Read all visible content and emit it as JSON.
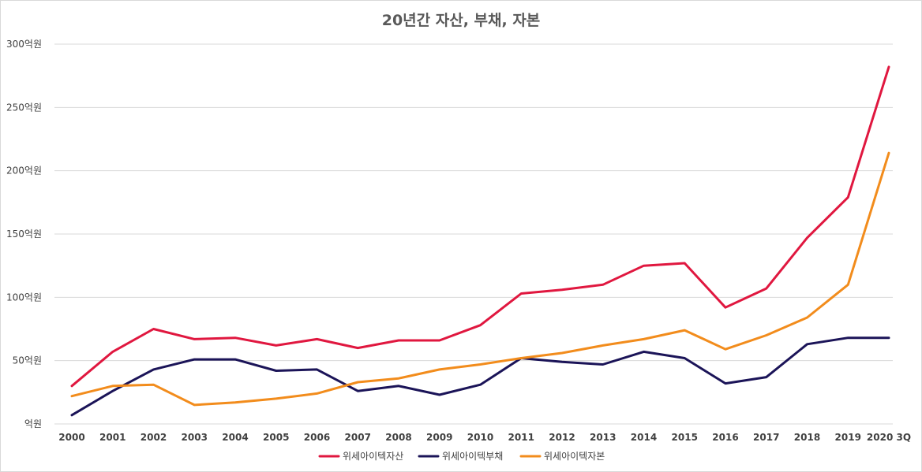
{
  "chart_data": {
    "type": "line",
    "title": "20년간 자산, 부채, 자본",
    "xlabel": "",
    "ylabel": "",
    "categories": [
      "2000",
      "2001",
      "2002",
      "2003",
      "2004",
      "2005",
      "2006",
      "2007",
      "2008",
      "2009",
      "2010",
      "2011",
      "2012",
      "2013",
      "2014",
      "2015",
      "2016",
      "2017",
      "2018",
      "2019",
      "2020 3Q"
    ],
    "ylim": [
      0,
      300
    ],
    "yticks": [
      0,
      50,
      100,
      150,
      200,
      250,
      300
    ],
    "ytick_labels": [
      "억원",
      "50억원",
      "100억원",
      "150억원",
      "200억원",
      "250억원",
      "300억원"
    ],
    "grid": true,
    "legend_position": "bottom",
    "series": [
      {
        "name": "위세아이텍자산",
        "color": "#e0173f",
        "values": [
          30,
          57,
          75,
          67,
          68,
          62,
          67,
          60,
          66,
          66,
          78,
          103,
          106,
          110,
          125,
          127,
          92,
          107,
          147,
          179,
          282
        ]
      },
      {
        "name": "위세아이텍부채",
        "color": "#1b1458",
        "values": [
          7,
          26,
          43,
          51,
          51,
          42,
          43,
          26,
          30,
          23,
          31,
          52,
          49,
          47,
          57,
          52,
          32,
          37,
          63,
          68,
          68
        ]
      },
      {
        "name": "위세아이텍자본",
        "color": "#f28c1c",
        "values": [
          22,
          30,
          31,
          15,
          17,
          20,
          24,
          33,
          36,
          43,
          47,
          52,
          56,
          62,
          67,
          74,
          59,
          70,
          84,
          110,
          214
        ]
      }
    ]
  }
}
